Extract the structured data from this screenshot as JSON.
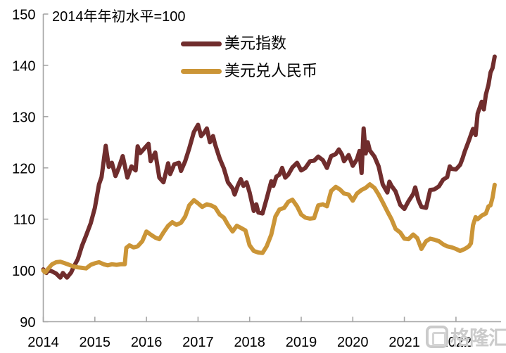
{
  "title": "2014年年初水平=100",
  "watermark": {
    "text": "格隆汇",
    "icon": "gelonghui-logo"
  },
  "colors": {
    "usd_index": "#702D2D",
    "usd_cny": "#CB9537",
    "axis": "#A6A6A6",
    "text": "#000000",
    "watermark": "#CBCBCB",
    "background": "#FFFFFF"
  },
  "chart_data": {
    "type": "line",
    "title": "2014年年初水平=100",
    "xlabel": "",
    "ylabel": "",
    "x_axis": {
      "range": [
        2014,
        2022.9
      ],
      "ticks": [
        2014,
        2015,
        2016,
        2017,
        2018,
        2019,
        2020,
        2021,
        2022
      ],
      "tick_labels": [
        "2014",
        "2015",
        "2016",
        "2017",
        "2018",
        "2019",
        "2020",
        "2021",
        "2022"
      ]
    },
    "y_axis": {
      "range": [
        90,
        150
      ],
      "ticks": [
        90,
        100,
        110,
        120,
        130,
        140,
        150
      ],
      "tick_labels": [
        "90",
        "100",
        "110",
        "120",
        "130",
        "140",
        "150"
      ]
    },
    "grid": false,
    "legend_position": "top-center",
    "series": [
      {
        "name": "美元指数",
        "color": "#702D2D",
        "points": [
          [
            2014.0,
            100.2
          ],
          [
            2014.06,
            99.5
          ],
          [
            2014.1,
            100.1
          ],
          [
            2014.17,
            99.8
          ],
          [
            2014.25,
            99.4
          ],
          [
            2014.33,
            98.6
          ],
          [
            2014.38,
            99.5
          ],
          [
            2014.46,
            98.6
          ],
          [
            2014.54,
            99.6
          ],
          [
            2014.58,
            100.5
          ],
          [
            2014.67,
            102.2
          ],
          [
            2014.75,
            104.8
          ],
          [
            2014.83,
            106.8
          ],
          [
            2014.92,
            109.2
          ],
          [
            2015.0,
            112.2
          ],
          [
            2015.08,
            116.8
          ],
          [
            2015.13,
            118.2
          ],
          [
            2015.17,
            121.3
          ],
          [
            2015.21,
            124.3
          ],
          [
            2015.27,
            120.2
          ],
          [
            2015.33,
            121.0
          ],
          [
            2015.4,
            118.4
          ],
          [
            2015.46,
            119.9
          ],
          [
            2015.54,
            122.3
          ],
          [
            2015.63,
            118.1
          ],
          [
            2015.71,
            120.3
          ],
          [
            2015.79,
            119.5
          ],
          [
            2015.83,
            124.2
          ],
          [
            2015.88,
            122.9
          ],
          [
            2015.96,
            123.8
          ],
          [
            2016.04,
            124.7
          ],
          [
            2016.08,
            121.3
          ],
          [
            2016.17,
            123.0
          ],
          [
            2016.25,
            118.1
          ],
          [
            2016.33,
            117.2
          ],
          [
            2016.42,
            120.9
          ],
          [
            2016.46,
            118.8
          ],
          [
            2016.54,
            120.7
          ],
          [
            2016.63,
            121.0
          ],
          [
            2016.67,
            119.4
          ],
          [
            2016.75,
            121.3
          ],
          [
            2016.83,
            123.8
          ],
          [
            2016.92,
            127.0
          ],
          [
            2017.0,
            128.4
          ],
          [
            2017.06,
            126.2
          ],
          [
            2017.13,
            127.0
          ],
          [
            2017.17,
            127.7
          ],
          [
            2017.23,
            125.0
          ],
          [
            2017.29,
            126.2
          ],
          [
            2017.33,
            124.6
          ],
          [
            2017.42,
            121.8
          ],
          [
            2017.5,
            119.9
          ],
          [
            2017.58,
            117.2
          ],
          [
            2017.67,
            116.0
          ],
          [
            2017.71,
            114.8
          ],
          [
            2017.77,
            116.5
          ],
          [
            2017.83,
            117.8
          ],
          [
            2017.88,
            116.5
          ],
          [
            2017.94,
            117.2
          ],
          [
            2018.0,
            115.2
          ],
          [
            2018.08,
            111.6
          ],
          [
            2018.13,
            112.9
          ],
          [
            2018.17,
            111.3
          ],
          [
            2018.25,
            111.1
          ],
          [
            2018.33,
            114.0
          ],
          [
            2018.42,
            117.4
          ],
          [
            2018.46,
            116.5
          ],
          [
            2018.52,
            118.3
          ],
          [
            2018.58,
            118.7
          ],
          [
            2018.63,
            120.0
          ],
          [
            2018.69,
            118.1
          ],
          [
            2018.75,
            118.7
          ],
          [
            2018.83,
            120.1
          ],
          [
            2018.92,
            121.0
          ],
          [
            2019.0,
            119.5
          ],
          [
            2019.08,
            120.0
          ],
          [
            2019.17,
            121.3
          ],
          [
            2019.25,
            121.4
          ],
          [
            2019.33,
            122.2
          ],
          [
            2019.42,
            121.5
          ],
          [
            2019.5,
            120.0
          ],
          [
            2019.58,
            122.3
          ],
          [
            2019.67,
            122.7
          ],
          [
            2019.73,
            123.6
          ],
          [
            2019.79,
            122.6
          ],
          [
            2019.83,
            121.3
          ],
          [
            2019.92,
            122.5
          ],
          [
            2020.0,
            120.4
          ],
          [
            2020.08,
            121.7
          ],
          [
            2020.13,
            123.3
          ],
          [
            2020.17,
            119.0
          ],
          [
            2020.21,
            127.7
          ],
          [
            2020.25,
            122.8
          ],
          [
            2020.29,
            125.0
          ],
          [
            2020.33,
            123.4
          ],
          [
            2020.42,
            122.2
          ],
          [
            2020.5,
            120.3
          ],
          [
            2020.58,
            116.8
          ],
          [
            2020.67,
            115.2
          ],
          [
            2020.71,
            117.3
          ],
          [
            2020.75,
            116.5
          ],
          [
            2020.83,
            115.4
          ],
          [
            2020.92,
            112.8
          ],
          [
            2021.0,
            112.0
          ],
          [
            2021.08,
            113.5
          ],
          [
            2021.17,
            114.9
          ],
          [
            2021.21,
            116.2
          ],
          [
            2021.27,
            113.8
          ],
          [
            2021.33,
            112.4
          ],
          [
            2021.42,
            112.2
          ],
          [
            2021.5,
            115.7
          ],
          [
            2021.58,
            115.8
          ],
          [
            2021.67,
            116.4
          ],
          [
            2021.75,
            117.7
          ],
          [
            2021.83,
            118.2
          ],
          [
            2021.88,
            120.3
          ],
          [
            2021.92,
            119.8
          ],
          [
            2022.0,
            119.7
          ],
          [
            2022.08,
            120.6
          ],
          [
            2022.13,
            121.9
          ],
          [
            2022.17,
            123.2
          ],
          [
            2022.25,
            125.3
          ],
          [
            2022.33,
            127.6
          ],
          [
            2022.38,
            126.4
          ],
          [
            2022.42,
            130.6
          ],
          [
            2022.5,
            132.9
          ],
          [
            2022.54,
            131.4
          ],
          [
            2022.58,
            134.3
          ],
          [
            2022.63,
            136.2
          ],
          [
            2022.67,
            138.6
          ],
          [
            2022.71,
            139.5
          ],
          [
            2022.75,
            141.7
          ]
        ]
      },
      {
        "name": "美元兑人民币",
        "color": "#CB9537",
        "points": [
          [
            2014.0,
            100.0
          ],
          [
            2014.04,
            99.6
          ],
          [
            2014.1,
            100.4
          ],
          [
            2014.17,
            101.2
          ],
          [
            2014.25,
            101.6
          ],
          [
            2014.33,
            101.7
          ],
          [
            2014.42,
            101.4
          ],
          [
            2014.5,
            101.1
          ],
          [
            2014.58,
            100.8
          ],
          [
            2014.67,
            100.6
          ],
          [
            2014.75,
            100.5
          ],
          [
            2014.83,
            100.4
          ],
          [
            2014.92,
            101.1
          ],
          [
            2015.0,
            101.4
          ],
          [
            2015.08,
            101.6
          ],
          [
            2015.17,
            101.2
          ],
          [
            2015.25,
            101.0
          ],
          [
            2015.33,
            101.2
          ],
          [
            2015.42,
            101.1
          ],
          [
            2015.5,
            101.2
          ],
          [
            2015.58,
            101.2
          ],
          [
            2015.61,
            104.4
          ],
          [
            2015.67,
            104.9
          ],
          [
            2015.75,
            104.5
          ],
          [
            2015.83,
            104.7
          ],
          [
            2015.92,
            105.7
          ],
          [
            2016.0,
            107.6
          ],
          [
            2016.08,
            107.0
          ],
          [
            2016.17,
            106.4
          ],
          [
            2016.25,
            106.1
          ],
          [
            2016.33,
            107.4
          ],
          [
            2016.42,
            108.7
          ],
          [
            2016.5,
            109.4
          ],
          [
            2016.58,
            108.9
          ],
          [
            2016.67,
            109.3
          ],
          [
            2016.75,
            110.5
          ],
          [
            2016.83,
            112.7
          ],
          [
            2016.92,
            113.7
          ],
          [
            2017.0,
            113.1
          ],
          [
            2017.08,
            112.4
          ],
          [
            2017.17,
            112.9
          ],
          [
            2017.25,
            112.7
          ],
          [
            2017.33,
            112.3
          ],
          [
            2017.42,
            110.9
          ],
          [
            2017.5,
            110.3
          ],
          [
            2017.58,
            108.9
          ],
          [
            2017.67,
            107.6
          ],
          [
            2017.75,
            108.7
          ],
          [
            2017.83,
            108.3
          ],
          [
            2017.92,
            107.8
          ],
          [
            2018.0,
            104.9
          ],
          [
            2018.08,
            103.8
          ],
          [
            2018.17,
            103.5
          ],
          [
            2018.25,
            103.4
          ],
          [
            2018.33,
            104.7
          ],
          [
            2018.42,
            107.0
          ],
          [
            2018.5,
            110.5
          ],
          [
            2018.58,
            111.9
          ],
          [
            2018.67,
            112.2
          ],
          [
            2018.75,
            113.4
          ],
          [
            2018.83,
            113.8
          ],
          [
            2018.92,
            112.5
          ],
          [
            2019.0,
            110.9
          ],
          [
            2019.08,
            110.3
          ],
          [
            2019.17,
            110.1
          ],
          [
            2019.25,
            110.2
          ],
          [
            2019.33,
            112.7
          ],
          [
            2019.42,
            112.9
          ],
          [
            2019.5,
            112.5
          ],
          [
            2019.58,
            115.5
          ],
          [
            2019.67,
            116.3
          ],
          [
            2019.75,
            115.8
          ],
          [
            2019.83,
            115.0
          ],
          [
            2019.92,
            114.8
          ],
          [
            2020.0,
            113.6
          ],
          [
            2020.08,
            115.0
          ],
          [
            2020.17,
            115.7
          ],
          [
            2020.25,
            116.1
          ],
          [
            2020.33,
            116.8
          ],
          [
            2020.42,
            116.1
          ],
          [
            2020.5,
            114.8
          ],
          [
            2020.58,
            113.3
          ],
          [
            2020.67,
            111.5
          ],
          [
            2020.75,
            110.0
          ],
          [
            2020.83,
            108.1
          ],
          [
            2020.92,
            107.4
          ],
          [
            2021.0,
            106.2
          ],
          [
            2021.08,
            106.1
          ],
          [
            2021.17,
            107.0
          ],
          [
            2021.25,
            106.3
          ],
          [
            2021.33,
            104.2
          ],
          [
            2021.42,
            105.7
          ],
          [
            2021.5,
            106.2
          ],
          [
            2021.58,
            106.0
          ],
          [
            2021.67,
            105.7
          ],
          [
            2021.75,
            105.1
          ],
          [
            2021.83,
            104.7
          ],
          [
            2021.92,
            104.5
          ],
          [
            2022.0,
            104.2
          ],
          [
            2022.08,
            103.8
          ],
          [
            2022.17,
            104.2
          ],
          [
            2022.25,
            104.7
          ],
          [
            2022.29,
            105.3
          ],
          [
            2022.33,
            108.8
          ],
          [
            2022.38,
            110.4
          ],
          [
            2022.42,
            110.0
          ],
          [
            2022.5,
            110.7
          ],
          [
            2022.58,
            111.1
          ],
          [
            2022.63,
            112.5
          ],
          [
            2022.67,
            112.7
          ],
          [
            2022.71,
            114.2
          ],
          [
            2022.75,
            116.7
          ]
        ]
      }
    ]
  }
}
